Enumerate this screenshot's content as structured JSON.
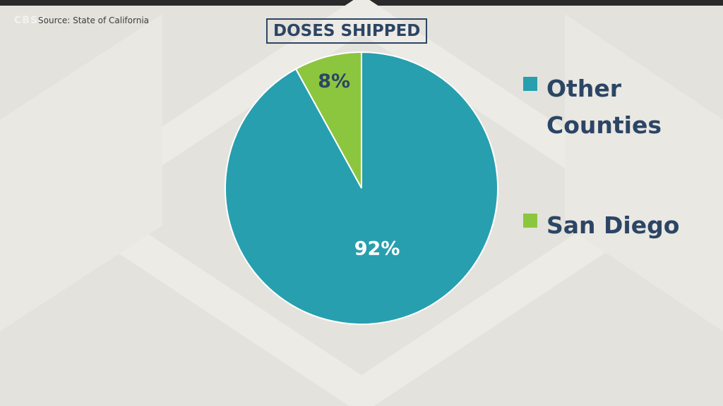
{
  "watermark": "CBS8",
  "source": "Source: State of California",
  "chart_data": {
    "type": "pie",
    "title": "DOSES SHIPPED",
    "slices": [
      {
        "name": "San Diego",
        "value": 8,
        "label": "8%",
        "color": "#8cc63f"
      },
      {
        "name": "Other Counties",
        "value": 92,
        "label": "92%",
        "color": "#279fae"
      }
    ],
    "legend": [
      {
        "name": "Other Counties",
        "color": "#279fae"
      },
      {
        "name": "San Diego",
        "color": "#8cc63f"
      }
    ],
    "legend_position": "right"
  }
}
